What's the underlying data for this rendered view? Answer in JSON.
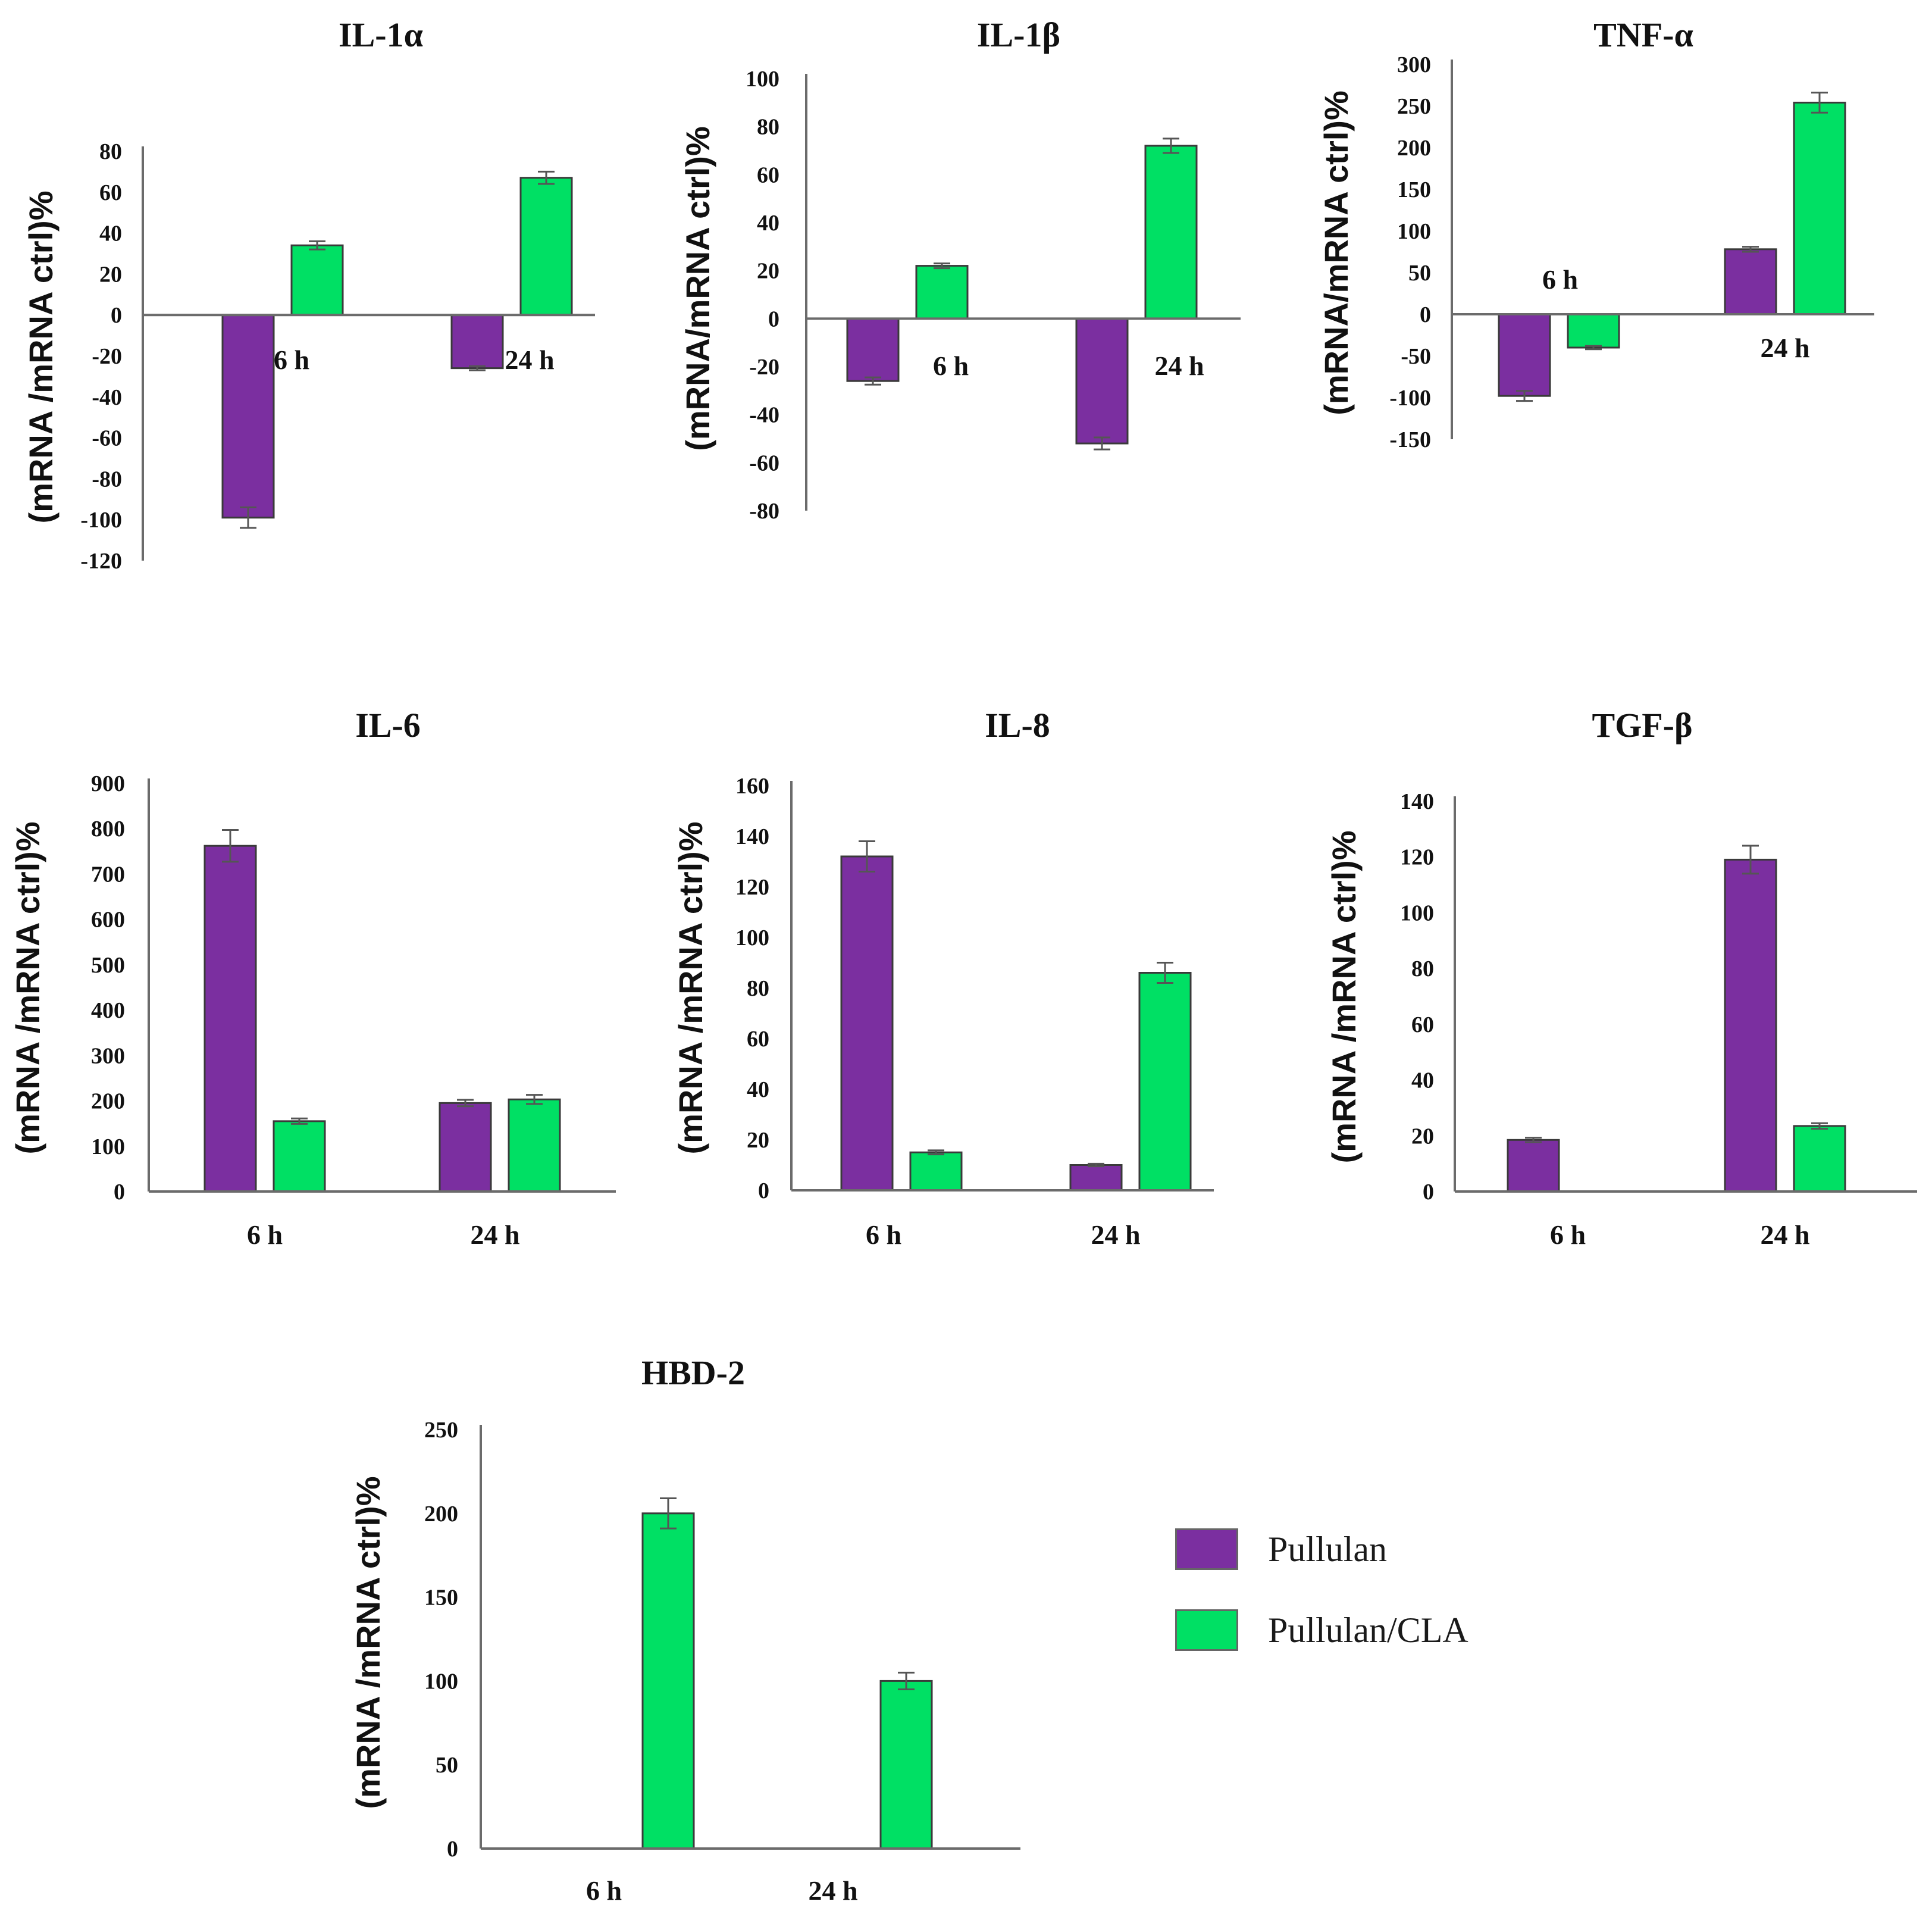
{
  "colors": {
    "pullulan": "#7b2fa0",
    "pullulan_cla": "#00e064",
    "axis": "#6b6b6b",
    "error_bar": "#555555",
    "text": "#111111"
  },
  "legend": {
    "items": [
      {
        "label": "Pullulan",
        "color": "#7b2fa0"
      },
      {
        "label": "Pullulan/CLA",
        "color": "#00e064"
      }
    ]
  },
  "chart_data": [
    {
      "type": "bar",
      "title": "IL-1α",
      "ylabel": "(mRNA /mRNA ctrl)%",
      "categories": [
        "6 h",
        "24 h"
      ],
      "ylim": [
        -120,
        80
      ],
      "ticks": [
        80,
        60,
        40,
        20,
        0,
        -20,
        -40,
        -60,
        -80,
        -100,
        -120
      ],
      "series": [
        {
          "name": "Pullulan",
          "values": [
            -99,
            -26
          ],
          "errors": [
            5,
            1
          ]
        },
        {
          "name": "Pullulan/CLA",
          "values": [
            34,
            67
          ],
          "errors": [
            2,
            3
          ]
        }
      ]
    },
    {
      "type": "bar",
      "title": "IL-1β",
      "ylabel": "(mRNA/mRNA ctrl)%",
      "categories": [
        "6 h",
        "24 h"
      ],
      "ylim": [
        -80,
        100
      ],
      "ticks": [
        100,
        80,
        60,
        40,
        20,
        0,
        -20,
        -40,
        -60,
        -80
      ],
      "series": [
        {
          "name": "Pullulan",
          "values": [
            -26,
            -52
          ],
          "errors": [
            1.5,
            2.5
          ]
        },
        {
          "name": "Pullulan/CLA",
          "values": [
            22,
            72
          ],
          "errors": [
            1,
            3
          ]
        }
      ]
    },
    {
      "type": "bar",
      "title": "TNF-α",
      "ylabel": "(mRNA/mRNA ctrl)%",
      "categories": [
        "6 h",
        "24 h"
      ],
      "ylim": [
        -150,
        300
      ],
      "ticks": [
        300,
        250,
        200,
        150,
        100,
        50,
        0,
        -50,
        -100,
        -150
      ],
      "series": [
        {
          "name": "Pullulan",
          "values": [
            -98,
            78
          ],
          "errors": [
            6,
            3
          ]
        },
        {
          "name": "Pullulan/CLA",
          "values": [
            -40,
            254
          ],
          "errors": [
            2,
            12
          ]
        }
      ]
    },
    {
      "type": "bar",
      "title": "IL-6",
      "ylabel": "(mRNA /mRNA ctrl)%",
      "categories": [
        "6 h",
        "24 h"
      ],
      "ylim": [
        0,
        900
      ],
      "ticks": [
        900,
        800,
        700,
        600,
        500,
        400,
        300,
        200,
        100,
        0
      ],
      "series": [
        {
          "name": "Pullulan",
          "values": [
            762,
            195
          ],
          "errors": [
            35,
            7
          ]
        },
        {
          "name": "Pullulan/CLA",
          "values": [
            155,
            203
          ],
          "errors": [
            6,
            10
          ]
        }
      ]
    },
    {
      "type": "bar",
      "title": "IL-8",
      "ylabel": "(mRNA /mRNA ctrl)%",
      "categories": [
        "6 h",
        "24 h"
      ],
      "ylim": [
        0,
        160
      ],
      "ticks": [
        160,
        140,
        120,
        100,
        80,
        60,
        40,
        20,
        0
      ],
      "series": [
        {
          "name": "Pullulan",
          "values": [
            132,
            10
          ],
          "errors": [
            6,
            0.5
          ]
        },
        {
          "name": "Pullulan/CLA",
          "values": [
            15,
            86
          ],
          "errors": [
            0.8,
            4
          ]
        }
      ]
    },
    {
      "type": "bar",
      "title": "TGF-β",
      "ylabel": "(mRNA /mRNA ctrl)%",
      "categories": [
        "6 h",
        "24 h"
      ],
      "ylim": [
        0,
        140
      ],
      "ticks": [
        140,
        120,
        100,
        80,
        60,
        40,
        20,
        0
      ],
      "series": [
        {
          "name": "Pullulan",
          "values": [
            18.5,
            119
          ],
          "errors": [
            0.8,
            5
          ]
        },
        {
          "name": "Pullulan/CLA",
          "values": [
            0,
            23.5
          ],
          "errors": [
            0,
            1
          ]
        }
      ]
    },
    {
      "type": "bar",
      "title": "HBD-2",
      "ylabel": "(mRNA /mRNA ctrl)%",
      "categories": [
        "6 h",
        "24 h"
      ],
      "ylim": [
        0,
        250
      ],
      "ticks": [
        250,
        200,
        150,
        100,
        50,
        0
      ],
      "series": [
        {
          "name": "Pullulan",
          "values": [
            0,
            0
          ],
          "errors": [
            0,
            0
          ]
        },
        {
          "name": "Pullulan/CLA",
          "values": [
            200,
            100
          ],
          "errors": [
            9,
            5
          ]
        }
      ]
    }
  ]
}
